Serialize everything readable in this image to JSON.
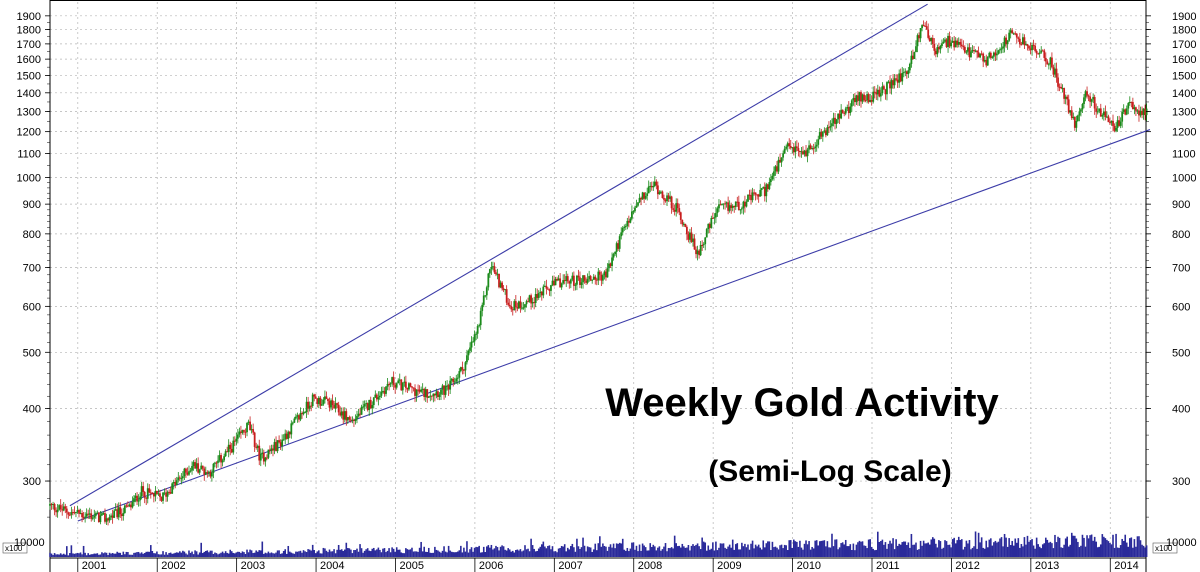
{
  "chart_data": {
    "type": "candlestick",
    "title": "Weekly Gold Activity",
    "subtitle": "(Semi-Log Scale)",
    "y_scale": "log",
    "ylim": [
      255,
      1960
    ],
    "y_ticks": [
      300,
      400,
      500,
      600,
      700,
      800,
      900,
      1000,
      1100,
      1200,
      1300,
      1400,
      1500,
      1600,
      1700,
      1800,
      1900
    ],
    "x_ticks": [
      "2001",
      "2002",
      "2003",
      "2004",
      "2005",
      "2006",
      "2007",
      "2008",
      "2009",
      "2010",
      "2011",
      "2012",
      "2013",
      "2014"
    ],
    "xlim": [
      2000.6,
      2014.4
    ],
    "volume_label": "10000",
    "volume_unit": "x100",
    "grid": true,
    "colors": {
      "up": "#1a8a1a",
      "down": "#c81e1e",
      "trendline": "#3c3ca8",
      "volume": "#2a2a9a",
      "grid": "#b4b4b4"
    },
    "price_path": [
      {
        "t": 2000.6,
        "p": 272
      },
      {
        "t": 2000.85,
        "p": 265
      },
      {
        "t": 2001.1,
        "p": 262
      },
      {
        "t": 2001.3,
        "p": 258
      },
      {
        "t": 2001.6,
        "p": 270
      },
      {
        "t": 2001.75,
        "p": 288
      },
      {
        "t": 2002.0,
        "p": 280
      },
      {
        "t": 2002.4,
        "p": 320
      },
      {
        "t": 2002.6,
        "p": 310
      },
      {
        "t": 2002.9,
        "p": 345
      },
      {
        "t": 2003.1,
        "p": 375
      },
      {
        "t": 2003.25,
        "p": 328
      },
      {
        "t": 2003.5,
        "p": 350
      },
      {
        "t": 2003.9,
        "p": 415
      },
      {
        "t": 2004.1,
        "p": 410
      },
      {
        "t": 2004.4,
        "p": 380
      },
      {
        "t": 2004.9,
        "p": 445
      },
      {
        "t": 2005.3,
        "p": 425
      },
      {
        "t": 2005.6,
        "p": 430
      },
      {
        "t": 2005.8,
        "p": 470
      },
      {
        "t": 2006.0,
        "p": 555
      },
      {
        "t": 2006.15,
        "p": 710
      },
      {
        "t": 2006.4,
        "p": 600
      },
      {
        "t": 2006.6,
        "p": 610
      },
      {
        "t": 2007.0,
        "p": 660
      },
      {
        "t": 2007.4,
        "p": 670
      },
      {
        "t": 2007.6,
        "p": 680
      },
      {
        "t": 2007.8,
        "p": 800
      },
      {
        "t": 2008.0,
        "p": 900
      },
      {
        "t": 2008.2,
        "p": 975
      },
      {
        "t": 2008.5,
        "p": 880
      },
      {
        "t": 2008.75,
        "p": 740
      },
      {
        "t": 2009.0,
        "p": 880
      },
      {
        "t": 2009.3,
        "p": 900
      },
      {
        "t": 2009.6,
        "p": 950
      },
      {
        "t": 2009.9,
        "p": 1130
      },
      {
        "t": 2010.1,
        "p": 1100
      },
      {
        "t": 2010.4,
        "p": 1220
      },
      {
        "t": 2010.8,
        "p": 1380
      },
      {
        "t": 2011.0,
        "p": 1380
      },
      {
        "t": 2011.4,
        "p": 1530
      },
      {
        "t": 2011.6,
        "p": 1860
      },
      {
        "t": 2011.75,
        "p": 1640
      },
      {
        "t": 2011.9,
        "p": 1720
      },
      {
        "t": 2012.1,
        "p": 1660
      },
      {
        "t": 2012.4,
        "p": 1590
      },
      {
        "t": 2012.7,
        "p": 1760
      },
      {
        "t": 2012.95,
        "p": 1680
      },
      {
        "t": 2013.2,
        "p": 1580
      },
      {
        "t": 2013.35,
        "p": 1400
      },
      {
        "t": 2013.5,
        "p": 1240
      },
      {
        "t": 2013.65,
        "p": 1400
      },
      {
        "t": 2013.85,
        "p": 1280
      },
      {
        "t": 2014.0,
        "p": 1220
      },
      {
        "t": 2014.2,
        "p": 1330
      },
      {
        "t": 2014.4,
        "p": 1290
      }
    ],
    "trendlines": [
      {
        "name": "upper",
        "from": {
          "t": 2000.85,
          "p": 272
        },
        "to": {
          "t": 2011.65,
          "p": 1990
        }
      },
      {
        "name": "lower",
        "from": {
          "t": 2000.95,
          "p": 256
        },
        "to": {
          "t": 2014.45,
          "p": 1210
        }
      }
    ]
  }
}
